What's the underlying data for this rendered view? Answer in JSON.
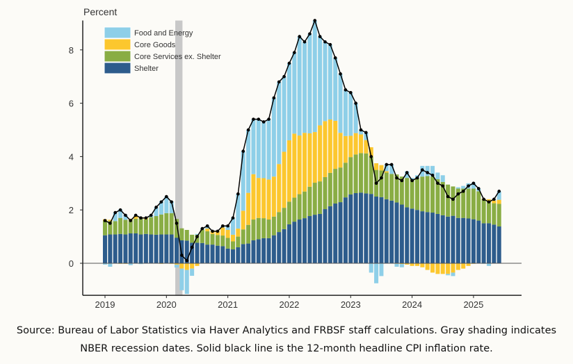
{
  "chart_data": {
    "type": "bar",
    "stacked": true,
    "ylabel": "Percent",
    "ylim": [
      -1.2,
      9.1
    ],
    "yticks": [
      0,
      2,
      4,
      6,
      8
    ],
    "xticks": [
      "2019",
      "2020",
      "2021",
      "2022",
      "2023",
      "2024",
      "2025"
    ],
    "start_month": "2019-01",
    "grid": false,
    "legend_position": "top-left",
    "recession": {
      "start": "2020-03",
      "end": "2020-04",
      "color": "#c8c8c8"
    },
    "series": [
      {
        "name": "Food and Energy",
        "color": "#8ecfe8",
        "values": [
          -0.05,
          -0.13,
          0.32,
          0.32,
          0.19,
          -0.07,
          0.03,
          -0.03,
          0,
          0.07,
          0.33,
          0.49,
          0.62,
          0.44,
          -0.11,
          -0.81,
          -0.9,
          -0.27,
          0.03,
          0.04,
          0.1,
          0,
          -0.01,
          0.06,
          0.15,
          0.63,
          1.3,
          2.23,
          2.36,
          2.06,
          2.2,
          2.11,
          2.26,
          2.95,
          3.08,
          2.82,
          2.89,
          3.04,
          3.71,
          3.41,
          3.73,
          4.18,
          3.33,
          2.97,
          2.81,
          2.36,
          2.21,
          1.73,
          1.62,
          1.12,
          0.17,
          0.28,
          -0.35,
          -0.75,
          -0.48,
          0.25,
          0.35,
          -0.11,
          -0.12,
          0.25,
          0.05,
          0.1,
          0.4,
          0.38,
          0.4,
          0.25,
          0.25,
          -0.05,
          -0.13,
          0.05,
          0.1,
          0.2,
          0.22,
          0.1,
          -0.02,
          -0.1,
          0.05,
          0.32
        ]
      },
      {
        "name": "Core Goods",
        "color": "#fcc72e",
        "values": [
          0.05,
          0.05,
          0,
          -0.02,
          -0.02,
          0.05,
          0.1,
          0.05,
          0.05,
          0,
          0,
          -0.02,
          0,
          -0.02,
          -0.05,
          -0.2,
          -0.25,
          -0.2,
          -0.1,
          0,
          0.1,
          0.1,
          0.15,
          0.3,
          0.3,
          0.25,
          0.3,
          0.7,
          1.2,
          1.7,
          1.5,
          1.5,
          1.5,
          1.5,
          1.8,
          2.1,
          2.3,
          2.4,
          2.2,
          2.2,
          2.0,
          1.9,
          2.1,
          2.1,
          2.0,
          1.8,
          1.3,
          1.0,
          0.8,
          0.8,
          0.7,
          0.5,
          0.35,
          0.25,
          0.2,
          0.05,
          0,
          -0.02,
          -0.03,
          -0.05,
          -0.1,
          -0.1,
          -0.15,
          -0.25,
          -0.35,
          -0.4,
          -0.4,
          -0.4,
          -0.35,
          -0.25,
          -0.2,
          -0.1,
          -0.02,
          0,
          0.02,
          0.05,
          0.1,
          0.15
        ]
      },
      {
        "name": "Core Services ex. Shelter",
        "color": "#89ad44",
        "values": [
          0.55,
          0.5,
          0.5,
          0.6,
          0.55,
          0.5,
          0.55,
          0.6,
          0.55,
          0.65,
          0.7,
          0.75,
          0.8,
          0.8,
          0.7,
          0.45,
          0.4,
          0.3,
          0.3,
          0.5,
          0.5,
          0.4,
          0.4,
          0.4,
          0.4,
          0.3,
          0.4,
          0.55,
          0.7,
          0.78,
          0.8,
          0.75,
          0.7,
          0.7,
          0.75,
          0.8,
          0.85,
          0.9,
          0.95,
          1.0,
          1.1,
          1.2,
          1.22,
          1.2,
          1.25,
          1.3,
          1.3,
          1.3,
          1.4,
          1.45,
          1.48,
          1.5,
          1.4,
          1.0,
          1.0,
          1.0,
          1.0,
          1.05,
          1.05,
          1.1,
          1.1,
          1.2,
          1.3,
          1.35,
          1.35,
          1.3,
          1.25,
          1.2,
          1.1,
          1.1,
          1.1,
          1.12,
          1.15,
          1.1,
          0.9,
          0.85,
          0.8,
          0.85
        ]
      },
      {
        "name": "Shelter",
        "color": "#2d5c8c",
        "values": [
          1.05,
          1.08,
          1.08,
          1.1,
          1.08,
          1.12,
          1.12,
          1.08,
          1.1,
          1.08,
          1.07,
          1.08,
          1.08,
          1.08,
          0.96,
          0.86,
          0.85,
          0.77,
          0.77,
          0.76,
          0.7,
          0.7,
          0.66,
          0.64,
          0.55,
          0.52,
          0.6,
          0.72,
          0.74,
          0.86,
          0.9,
          0.94,
          0.94,
          1.05,
          1.17,
          1.28,
          1.46,
          1.56,
          1.64,
          1.69,
          1.77,
          1.82,
          1.85,
          2.03,
          2.14,
          2.24,
          2.29,
          2.47,
          2.58,
          2.63,
          2.65,
          2.62,
          2.6,
          2.5,
          2.48,
          2.4,
          2.35,
          2.28,
          2.2,
          2.1,
          2.05,
          2.0,
          1.95,
          1.92,
          1.9,
          1.85,
          1.8,
          1.75,
          1.78,
          1.7,
          1.7,
          1.68,
          1.65,
          1.6,
          1.5,
          1.5,
          1.45,
          1.38
        ]
      }
    ],
    "line": {
      "color": "#000000",
      "values": [
        1.6,
        1.5,
        1.9,
        2.0,
        1.8,
        1.6,
        1.8,
        1.7,
        1.7,
        1.8,
        2.1,
        2.3,
        2.5,
        2.3,
        1.5,
        0.3,
        0.1,
        0.6,
        1.0,
        1.3,
        1.4,
        1.2,
        1.2,
        1.4,
        1.4,
        1.7,
        2.6,
        4.2,
        5.0,
        5.4,
        5.4,
        5.3,
        5.4,
        6.2,
        6.8,
        7.0,
        7.5,
        7.9,
        8.5,
        8.3,
        8.6,
        9.1,
        8.5,
        8.3,
        8.2,
        7.7,
        7.1,
        6.5,
        6.4,
        6.0,
        5.0,
        4.9,
        4.0,
        3.0,
        3.2,
        3.7,
        3.7,
        3.2,
        3.1,
        3.4,
        3.1,
        3.2,
        3.5,
        3.4,
        3.3,
        3.0,
        2.9,
        2.5,
        2.4,
        2.6,
        2.7,
        2.9,
        3.0,
        2.8,
        2.4,
        2.3,
        2.4,
        2.7
      ]
    }
  },
  "caption": {
    "line1": "Source: Bureau of Labor Statistics via Haver Analytics and FRBSF staff calculations. Gray shading indicates",
    "line2": "NBER recession dates. Solid black line is the 12-month headline CPI inflation rate."
  }
}
